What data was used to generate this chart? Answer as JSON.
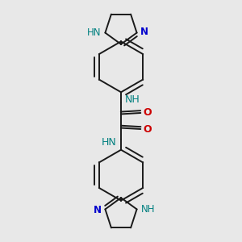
{
  "background_color": "#e8e8e8",
  "bond_color": "#1a1a1a",
  "n_color": "#0000cc",
  "o_color": "#cc0000",
  "nh_color": "#008080",
  "font_size": 8.5,
  "figsize": [
    3.0,
    3.0
  ],
  "dpi": 100,
  "bond_lw": 1.4,
  "xlim": [
    -2.5,
    2.5
  ],
  "ylim": [
    -5.2,
    5.2
  ]
}
